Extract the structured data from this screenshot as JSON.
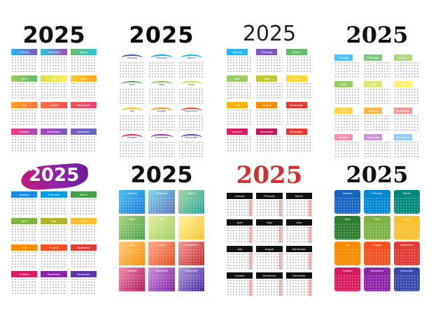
{
  "year": "2025",
  "months": [
    "January",
    "February",
    "March",
    "April",
    "May",
    "June",
    "July",
    "August",
    "September",
    "October",
    "November",
    "December"
  ],
  "panels": [
    {
      "id": "p1",
      "style": "gradient-header"
    },
    {
      "id": "p2",
      "style": "arc-header"
    },
    {
      "id": "p3",
      "style": "tab-header"
    },
    {
      "id": "p4",
      "style": "pastel-header"
    },
    {
      "id": "p5",
      "style": "brush-year"
    },
    {
      "id": "p6",
      "style": "full-gradient"
    },
    {
      "id": "p7",
      "style": "red-year-black-tabs"
    },
    {
      "id": "p8",
      "style": "colored-cards"
    }
  ],
  "palette": {
    "rainbow": [
      "#1e88e5",
      "#8e24aa",
      "#43a047",
      "#7cb342",
      "#fdd835",
      "#fb8c00",
      "#e53935",
      "#ec407a",
      "#ab47bc",
      "#3949ab",
      "#00acc1",
      "#26a69a"
    ],
    "red": "#d32f2f",
    "black": "#111111"
  }
}
